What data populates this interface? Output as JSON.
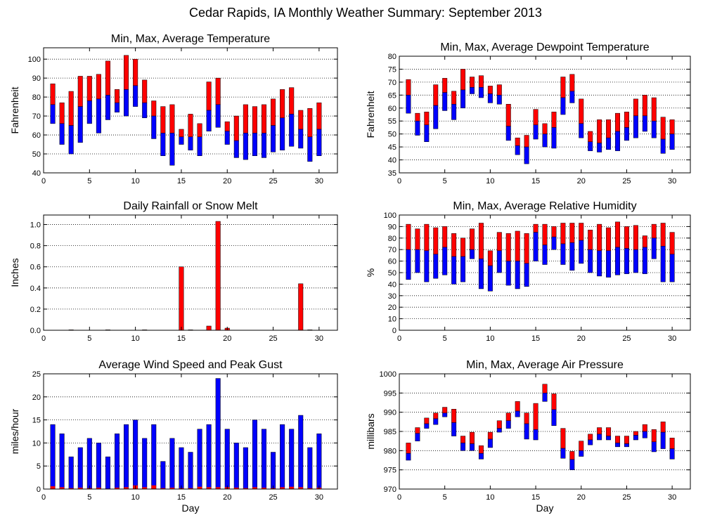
{
  "page": {
    "title": "Cedar Rapids, IA Monthly Weather Summary: September 2013"
  },
  "colors": {
    "upper": "#ff0000",
    "lower": "#0000ff",
    "outline": "#000000"
  },
  "chart_data": [
    {
      "id": "temp",
      "type": "bar",
      "subtype": "range-bar",
      "title": "Min, Max, Average Temperature",
      "ylabel": "Fahrenheit",
      "xlabel": "",
      "xlim": [
        0,
        32
      ],
      "ylim": [
        40,
        106
      ],
      "xticks": [
        0,
        5,
        10,
        15,
        20,
        25,
        30
      ],
      "yticks": [
        40,
        50,
        60,
        70,
        80,
        90,
        100
      ],
      "grid": true,
      "x": [
        1,
        2,
        3,
        4,
        5,
        6,
        7,
        8,
        9,
        10,
        11,
        12,
        13,
        14,
        15,
        16,
        17,
        18,
        19,
        20,
        21,
        22,
        23,
        24,
        25,
        26,
        27,
        28,
        29,
        30
      ],
      "min": [
        66,
        55,
        50,
        56,
        66,
        61,
        68,
        72,
        70,
        75,
        69,
        58,
        49,
        44,
        55,
        52,
        49,
        62,
        64,
        55,
        48,
        47,
        49,
        48,
        51,
        52,
        54,
        53,
        46,
        49
      ],
      "avg": [
        76,
        66,
        65,
        75,
        78,
        79,
        81,
        77,
        84,
        86,
        77,
        70,
        61,
        61,
        59,
        59,
        59,
        73,
        76,
        62,
        57,
        61,
        61,
        61,
        65,
        69,
        71,
        63,
        59,
        63
      ],
      "max": [
        87,
        77,
        83,
        91,
        91,
        92,
        99,
        84,
        102,
        100,
        89,
        78,
        75,
        76,
        63,
        71,
        66,
        88,
        90,
        67,
        70,
        76,
        75,
        76,
        79,
        84,
        85,
        73,
        74,
        77
      ]
    },
    {
      "id": "dewpoint",
      "type": "bar",
      "subtype": "range-bar",
      "title": "Min, Max, Average Dewpoint Temperature",
      "ylabel": "Fahrenheit",
      "xlabel": "",
      "xlim": [
        0,
        32
      ],
      "ylim": [
        35,
        80
      ],
      "xticks": [
        0,
        5,
        10,
        15,
        20,
        25,
        30
      ],
      "yticks": [
        35,
        40,
        45,
        50,
        55,
        60,
        65,
        70,
        75,
        80
      ],
      "grid": true,
      "x": [
        1,
        2,
        3,
        4,
        5,
        6,
        7,
        8,
        9,
        10,
        11,
        12,
        13,
        14,
        15,
        16,
        17,
        18,
        19,
        20,
        21,
        22,
        23,
        24,
        25,
        26,
        27,
        28,
        29,
        30
      ],
      "min": [
        58,
        49.5,
        47,
        52,
        59,
        55.5,
        60,
        65.5,
        64,
        62,
        61.5,
        47.5,
        42,
        38.5,
        48,
        45,
        44.5,
        57.5,
        62,
        48.5,
        43.5,
        43,
        44,
        43.5,
        47.5,
        48.5,
        51,
        48.5,
        42.5,
        44
      ],
      "avg": [
        65,
        55,
        53.5,
        61,
        66,
        61.5,
        67,
        68,
        68,
        65.5,
        65,
        53,
        45.5,
        45,
        53.5,
        50,
        52.5,
        64,
        66.5,
        54,
        47,
        46.5,
        48.5,
        51,
        52.5,
        57,
        57,
        55,
        48,
        50
      ],
      "max": [
        71,
        58,
        58.5,
        69,
        71.5,
        66.5,
        75,
        72,
        72.5,
        68.5,
        69,
        61.5,
        48.5,
        49.5,
        59.5,
        54,
        58.5,
        72,
        73,
        63.5,
        51,
        55.5,
        55.5,
        58,
        58.5,
        63.5,
        65,
        64,
        56.5,
        55.5
      ]
    },
    {
      "id": "rain",
      "type": "bar",
      "subtype": "single",
      "title": "Daily Rainfall or Snow Melt",
      "ylabel": "Inches",
      "xlabel": "",
      "xlim": [
        0,
        32
      ],
      "ylim": [
        0,
        1.09
      ],
      "xticks": [
        0,
        5,
        10,
        15,
        20,
        25,
        30
      ],
      "yticks": [
        0.0,
        0.2,
        0.4,
        0.6,
        0.8,
        1.0
      ],
      "ytick_labels": [
        "0.0",
        "0.2",
        "0.4",
        "0.6",
        "0.8",
        "1.0"
      ],
      "grid": true,
      "x": [
        1,
        2,
        3,
        4,
        5,
        6,
        7,
        8,
        9,
        10,
        11,
        12,
        13,
        14,
        15,
        16,
        17,
        18,
        19,
        20,
        21,
        22,
        23,
        24,
        25,
        26,
        27,
        28,
        29,
        30
      ],
      "values": [
        0,
        0,
        0.004,
        0,
        0,
        0,
        0.004,
        0,
        0,
        0,
        0.004,
        0,
        0,
        0,
        0.6,
        0.004,
        0,
        0.04,
        1.03,
        0.02,
        0,
        0,
        0,
        0,
        0,
        0,
        0,
        0.44,
        0.004,
        0
      ]
    },
    {
      "id": "humidity",
      "type": "bar",
      "subtype": "range-bar",
      "title": "Min, Max, Average Relative Humidity",
      "ylabel": "%",
      "xlabel": "",
      "xlim": [
        0,
        32
      ],
      "ylim": [
        0,
        100
      ],
      "xticks": [
        0,
        5,
        10,
        15,
        20,
        25,
        30
      ],
      "yticks": [
        0,
        10,
        20,
        30,
        40,
        50,
        60,
        70,
        80,
        90,
        100
      ],
      "grid": true,
      "x": [
        1,
        2,
        3,
        4,
        5,
        6,
        7,
        8,
        9,
        10,
        11,
        12,
        13,
        14,
        15,
        16,
        17,
        18,
        19,
        20,
        21,
        22,
        23,
        24,
        25,
        26,
        27,
        28,
        29,
        30
      ],
      "min": [
        44,
        50,
        42,
        45,
        48,
        40,
        42,
        62,
        36,
        34,
        50,
        39,
        36,
        38,
        60,
        57,
        70,
        57,
        52,
        58,
        50,
        47,
        46,
        48,
        49,
        50,
        49,
        62,
        42,
        42
      ],
      "avg": [
        70,
        70,
        69,
        66,
        72,
        64,
        64,
        70,
        62,
        56,
        69,
        60,
        60,
        58,
        85,
        74,
        81,
        75,
        76,
        78,
        70,
        69,
        69,
        72,
        71,
        70,
        72,
        80,
        73,
        66
      ],
      "max": [
        92,
        88,
        92,
        89,
        90,
        84,
        80,
        88,
        93,
        69,
        85,
        84,
        86,
        84,
        92,
        92,
        90,
        93,
        93,
        93,
        87,
        92,
        89,
        94,
        90,
        91,
        82,
        92,
        93,
        85
      ]
    },
    {
      "id": "wind",
      "type": "bar",
      "subtype": "stacked-overlay",
      "title": "Average Wind Speed and Peak Gust",
      "ylabel": "miles/hour",
      "xlabel": "Day",
      "xlim": [
        0,
        32
      ],
      "ylim": [
        0,
        25
      ],
      "xticks": [
        0,
        5,
        10,
        15,
        20,
        25,
        30
      ],
      "yticks": [
        0,
        5,
        10,
        15,
        20,
        25
      ],
      "grid": true,
      "x": [
        1,
        2,
        3,
        4,
        5,
        6,
        7,
        8,
        9,
        10,
        11,
        12,
        13,
        14,
        15,
        16,
        17,
        18,
        19,
        20,
        21,
        22,
        23,
        24,
        25,
        26,
        27,
        28,
        29,
        30
      ],
      "series": [
        {
          "name": "",
          "values": [
            14,
            12,
            7,
            9,
            11,
            10,
            7,
            12,
            14,
            15,
            11,
            14,
            6,
            11,
            9,
            8,
            13,
            14,
            24,
            13,
            10,
            9,
            15,
            13,
            8,
            14,
            13,
            16,
            9,
            12
          ]
        },
        {
          "name": "",
          "values": [
            0.6,
            0.4,
            0.2,
            0.3,
            0.2,
            0.3,
            0.1,
            0.3,
            0.4,
            0.8,
            0.4,
            0.8,
            0.2,
            0.3,
            0.2,
            0.2,
            0.5,
            0.4,
            0.4,
            0.4,
            0.3,
            0.2,
            0.4,
            0.3,
            0.2,
            0.4,
            0.5,
            0.4,
            0.2,
            0.3
          ]
        }
      ]
    },
    {
      "id": "pressure",
      "type": "bar",
      "subtype": "range-bar",
      "title": "Min, Max, Average Air Pressure",
      "ylabel": "millibars",
      "xlabel": "Day",
      "xlim": [
        0,
        32
      ],
      "ylim": [
        970,
        1000
      ],
      "xticks": [
        0,
        5,
        10,
        15,
        20,
        25,
        30
      ],
      "yticks": [
        970,
        975,
        980,
        985,
        990,
        995,
        1000
      ],
      "grid": true,
      "x": [
        1,
        2,
        3,
        4,
        5,
        6,
        7,
        8,
        9,
        10,
        11,
        12,
        13,
        14,
        15,
        16,
        17,
        18,
        19,
        20,
        21,
        22,
        23,
        24,
        25,
        26,
        27,
        28,
        29,
        30
      ],
      "min": [
        977.5,
        982.5,
        985.8,
        986.8,
        988.8,
        983.8,
        980.0,
        980.0,
        977.8,
        980.8,
        984.8,
        985.8,
        988.8,
        983.0,
        982.8,
        992.8,
        986.5,
        978.0,
        975.0,
        978.5,
        981.5,
        982.8,
        982.8,
        981.0,
        981.0,
        982.8,
        983.3,
        979.7,
        980.5,
        977.8
      ],
      "avg": [
        979.3,
        984.5,
        987.0,
        988.3,
        989.8,
        987.3,
        982.0,
        981.8,
        979.3,
        983.0,
        985.8,
        987.8,
        990.3,
        987.0,
        985.5,
        995.0,
        990.7,
        980.6,
        977.7,
        980.0,
        982.8,
        984.3,
        983.8,
        982.0,
        981.8,
        984.0,
        985.0,
        982.3,
        984.8,
        980.5
      ],
      "max": [
        982.0,
        986.0,
        988.5,
        989.8,
        991.3,
        990.8,
        983.8,
        984.8,
        981.3,
        984.8,
        987.8,
        989.8,
        992.8,
        989.8,
        992.3,
        997.3,
        994.8,
        985.8,
        979.8,
        982.5,
        984.3,
        986.0,
        986.0,
        983.8,
        983.8,
        985.0,
        986.8,
        985.5,
        987.5,
        983.3
      ]
    }
  ]
}
